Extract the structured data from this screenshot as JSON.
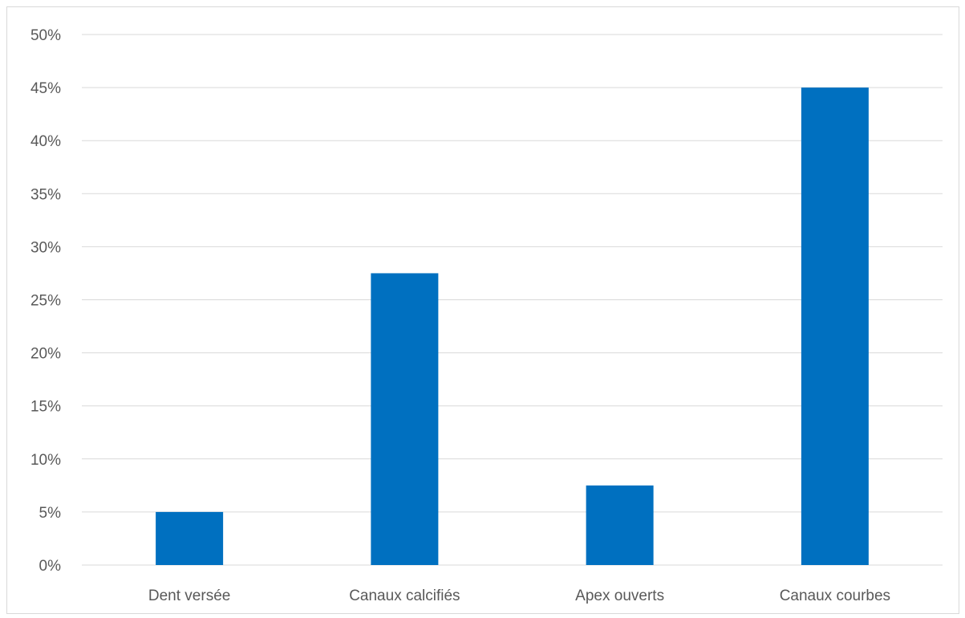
{
  "chart_data": {
    "type": "bar",
    "categories": [
      "Dent versée",
      "Canaux calcifiés",
      "Apex ouverts",
      "Canaux courbes"
    ],
    "values": [
      5,
      27.5,
      7.5,
      45
    ],
    "ylim": [
      0,
      50
    ],
    "y_ticks": [
      0,
      5,
      10,
      15,
      20,
      25,
      30,
      35,
      40,
      45,
      50
    ],
    "y_tick_format": "percent",
    "grid": true,
    "bar_color": "#0070C0",
    "grid_color": "#d9d9d9",
    "title": "",
    "xlabel": "",
    "ylabel": ""
  }
}
